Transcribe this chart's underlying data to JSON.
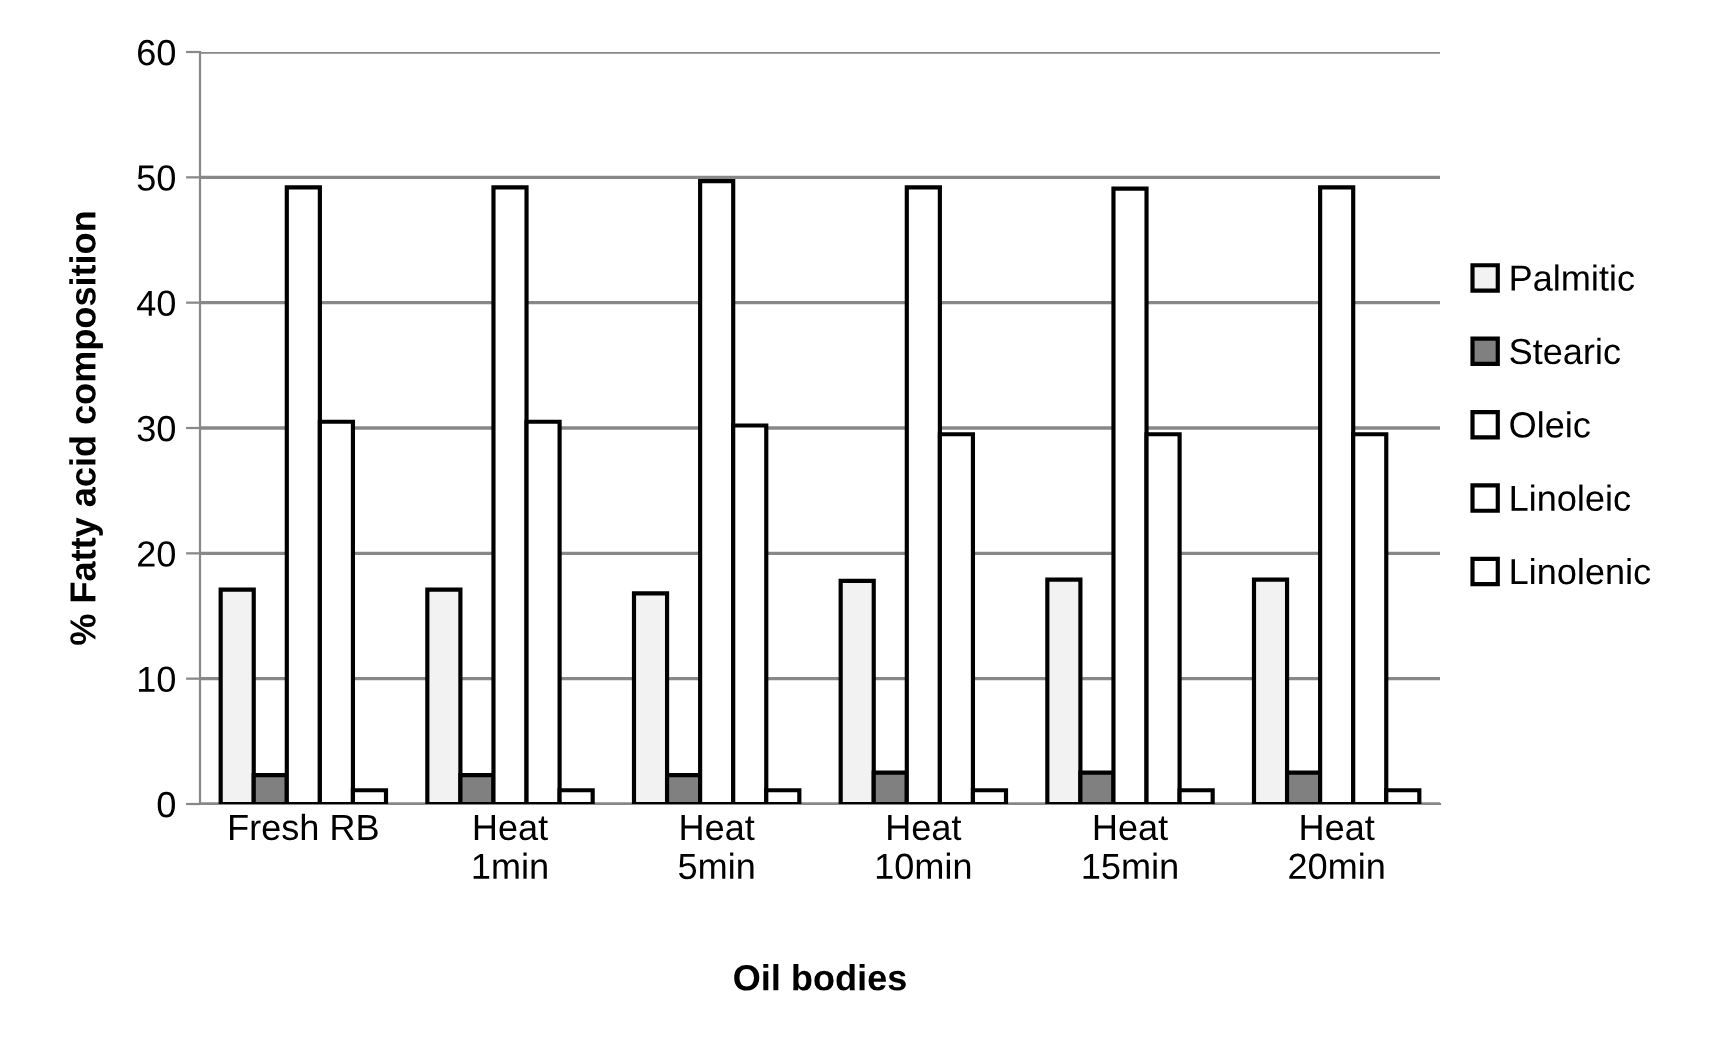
{
  "chart_data": {
    "type": "bar",
    "xlabel": "Oil bodies",
    "ylabel": "% Fatty acid composition",
    "categories": [
      "Fresh RB",
      "Heat\n1min",
      "Heat\n5min",
      "Heat\n10min",
      "Heat\n15min",
      "Heat\n20min"
    ],
    "series": [
      {
        "name": "Palmitic",
        "color": "#f2f2f2",
        "values": [
          17.1,
          17.1,
          16.8,
          17.8,
          17.9,
          17.9
        ]
      },
      {
        "name": "Stearic",
        "color": "#808080",
        "values": [
          2.3,
          2.3,
          2.3,
          2.5,
          2.5,
          2.5
        ]
      },
      {
        "name": "Oleic",
        "color": "#ffffff",
        "values": [
          49.2,
          49.2,
          49.7,
          49.2,
          49.1,
          49.2
        ]
      },
      {
        "name": "Linoleic",
        "color": "#ffffff",
        "values": [
          30.5,
          30.5,
          30.2,
          29.5,
          29.5,
          29.5
        ]
      },
      {
        "name": "Linolenic",
        "color": "#ffffff",
        "values": [
          1.1,
          1.1,
          1.1,
          1.1,
          1.1,
          1.1
        ]
      }
    ],
    "ylim": [
      0,
      60
    ],
    "yticks": [
      0,
      10,
      20,
      30,
      40,
      50,
      60
    ],
    "grid": "y",
    "legend": "right"
  }
}
